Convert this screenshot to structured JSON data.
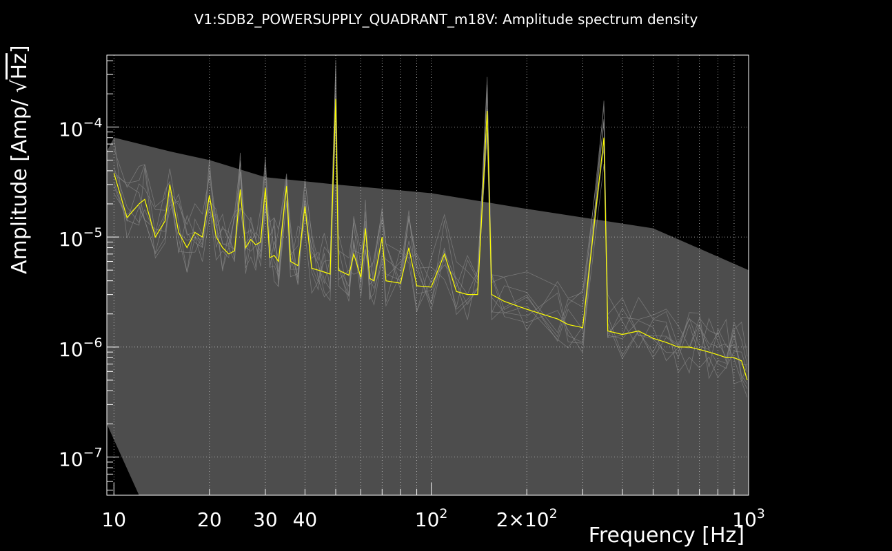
{
  "chart_data": {
    "type": "line",
    "title": "V1:SDB2_POWERSUPPLY_QUADRANT_m18V: Amplitude spectrum density",
    "xlabel": "Frequency [Hz]",
    "ylabel_prefix": "Amplitude [Amp/ ",
    "ylabel_root": "Hz",
    "ylabel_suffix": "]",
    "x_scale": "log",
    "y_scale": "log",
    "xlim": [
      9.5,
      1000
    ],
    "ylim": [
      4.5e-08,
      0.00045
    ],
    "grid": true,
    "x_ticks": [
      {
        "value": 10,
        "label": "10"
      },
      {
        "value": 20,
        "label": "20"
      },
      {
        "value": 30,
        "label": "30"
      },
      {
        "value": 40,
        "label": "40"
      },
      {
        "value": 100,
        "label": "10",
        "exp": "2"
      },
      {
        "value": 200,
        "label": "2×10",
        "exp": "2"
      },
      {
        "value": 1000,
        "label": "10",
        "exp": "3"
      }
    ],
    "y_ticks": [
      {
        "value": 0.0001,
        "label": "10",
        "exp": "−4"
      },
      {
        "value": 1e-05,
        "label": "10",
        "exp": "−5"
      },
      {
        "value": 1e-06,
        "label": "10",
        "exp": "−6"
      },
      {
        "value": 1e-07,
        "label": "10",
        "exp": "−7"
      }
    ],
    "colors": {
      "background": "#000000",
      "band": "#4d4d4d",
      "history": "#8a8a8a",
      "current": "#ffff00",
      "axes": "#ffffff"
    },
    "series": [
      {
        "role": "current",
        "color": "#ffff00",
        "points": [
          [
            10,
            3.8e-05
          ],
          [
            11,
            1.5e-05
          ],
          [
            12,
            2e-05
          ],
          [
            12.5,
            2.2e-05
          ],
          [
            13.5,
            1e-05
          ],
          [
            14.5,
            1.4e-05
          ],
          [
            15,
            3e-05
          ],
          [
            16,
            1.1e-05
          ],
          [
            17,
            8e-06
          ],
          [
            18,
            1.1e-05
          ],
          [
            19,
            1e-05
          ],
          [
            20,
            2.4e-05
          ],
          [
            21,
            1e-05
          ],
          [
            22,
            8e-06
          ],
          [
            23,
            7e-06
          ],
          [
            24,
            7.5e-06
          ],
          [
            25,
            2.7e-05
          ],
          [
            26,
            8e-06
          ],
          [
            27,
            9.5e-06
          ],
          [
            28,
            8.5e-06
          ],
          [
            29,
            9e-06
          ],
          [
            30,
            2.8e-05
          ],
          [
            31,
            6.5e-06
          ],
          [
            32,
            6.8e-06
          ],
          [
            33,
            6e-06
          ],
          [
            35,
            2.9e-05
          ],
          [
            36,
            6e-06
          ],
          [
            38,
            5.5e-06
          ],
          [
            40,
            1.9e-05
          ],
          [
            42,
            5.2e-06
          ],
          [
            44,
            5e-06
          ],
          [
            46,
            4.8e-06
          ],
          [
            48,
            4.6e-06
          ],
          [
            50,
            0.00018
          ],
          [
            51,
            5e-06
          ],
          [
            55,
            4.5e-06
          ],
          [
            57,
            7e-06
          ],
          [
            60,
            4.3e-06
          ],
          [
            62,
            1.2e-05
          ],
          [
            64,
            4.2e-06
          ],
          [
            66,
            4e-06
          ],
          [
            70,
            1e-05
          ],
          [
            72,
            4e-06
          ],
          [
            80,
            3.8e-06
          ],
          [
            85,
            8e-06
          ],
          [
            90,
            3.6e-06
          ],
          [
            100,
            3.5e-06
          ],
          [
            110,
            7e-06
          ],
          [
            120,
            3.2e-06
          ],
          [
            130,
            3e-06
          ],
          [
            140,
            3e-06
          ],
          [
            150,
            0.00014
          ],
          [
            155,
            3e-06
          ],
          [
            170,
            2.6e-06
          ],
          [
            200,
            2.2e-06
          ],
          [
            250,
            1.8e-06
          ],
          [
            270,
            1.6e-06
          ],
          [
            300,
            1.5e-06
          ],
          [
            350,
            8e-05
          ],
          [
            360,
            1.4e-06
          ],
          [
            400,
            1.3e-06
          ],
          [
            450,
            1.4e-06
          ],
          [
            500,
            1.2e-06
          ],
          [
            550,
            1.1e-06
          ],
          [
            600,
            1e-06
          ],
          [
            650,
            1e-06
          ],
          [
            700,
            9.5e-07
          ],
          [
            750,
            9e-07
          ],
          [
            800,
            8.5e-07
          ],
          [
            850,
            8e-07
          ],
          [
            900,
            8e-07
          ],
          [
            950,
            7.5e-07
          ],
          [
            990,
            5e-07
          ]
        ]
      }
    ],
    "band": {
      "upper": [
        [
          9.5,
          6e-05
        ],
        [
          10,
          8e-05
        ],
        [
          15,
          6e-05
        ],
        [
          20,
          5e-05
        ],
        [
          30,
          3.5e-05
        ],
        [
          50,
          3e-05
        ],
        [
          100,
          2.5e-05
        ],
        [
          200,
          1.8e-05
        ],
        [
          500,
          1.2e-05
        ],
        [
          1000,
          5e-06
        ]
      ],
      "lower": [
        [
          9.5,
          2e-07
        ],
        [
          12,
          4.5e-08
        ],
        [
          1000,
          4.5e-08
        ]
      ]
    }
  }
}
